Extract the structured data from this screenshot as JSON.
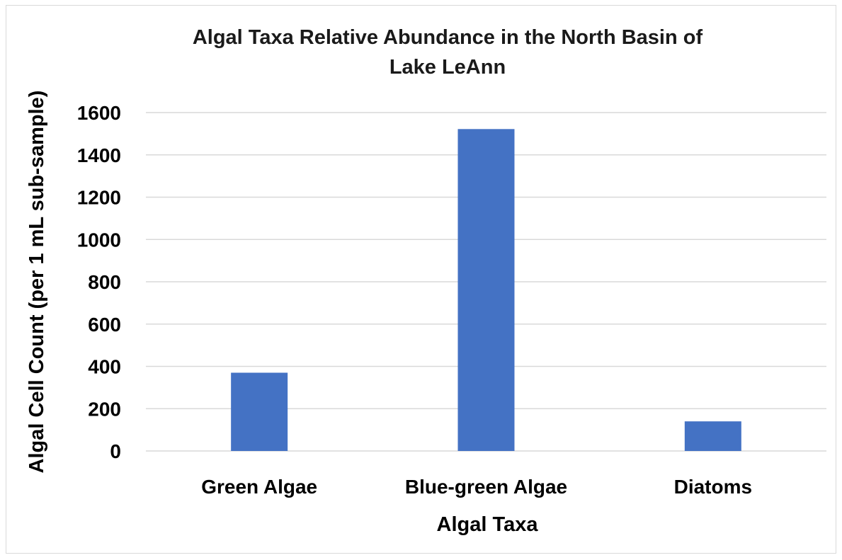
{
  "chart_data": {
    "type": "bar",
    "title_lines": [
      "Algal Taxa Relative Abundance in the North Basin of",
      "Lake LeAnn"
    ],
    "xlabel": "Algal Taxa",
    "ylabel": "Algal Cell Count (per 1 mL sub-sample)",
    "categories": [
      "Green Algae",
      "Blue-green Algae",
      "Diatoms"
    ],
    "values": [
      370,
      1522,
      140
    ],
    "ylim": [
      0,
      1600
    ],
    "yticks": [
      0,
      200,
      400,
      600,
      800,
      1000,
      1200,
      1400,
      1600
    ],
    "grid": true,
    "legend": "none",
    "colors": {
      "bar": "#4472c4",
      "grid": "#d9d9d9",
      "frame": "#d9d9d9"
    }
  }
}
